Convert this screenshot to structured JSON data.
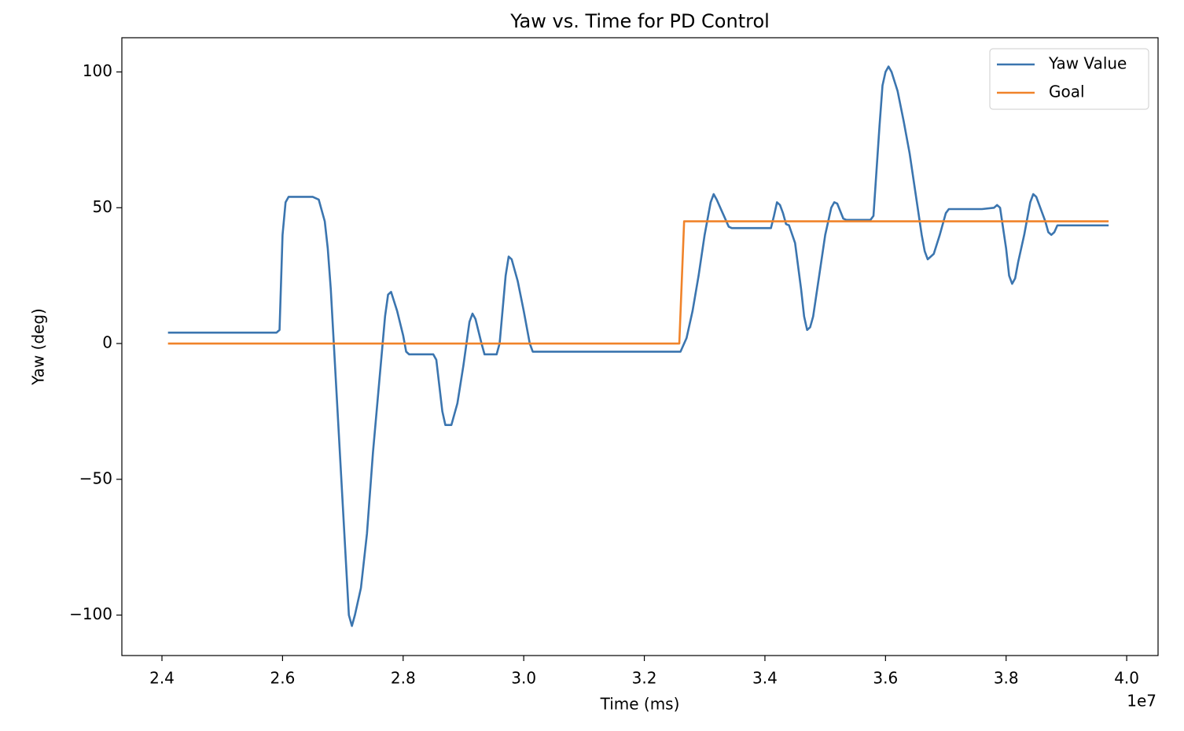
{
  "chart_data": {
    "type": "line",
    "title": "Yaw vs. Time for PD Control",
    "x_label": "Time (ms)",
    "y_label": "Yaw (deg)",
    "x_offset_label": "1e7",
    "xlim": [
      23335000,
      40520000
    ],
    "ylim": [
      -114.9,
      112.6
    ],
    "xticks": [
      {
        "value": 24000000,
        "label": "2.4"
      },
      {
        "value": 26000000,
        "label": "2.6"
      },
      {
        "value": 28000000,
        "label": "2.8"
      },
      {
        "value": 30000000,
        "label": "3.0"
      },
      {
        "value": 32000000,
        "label": "3.2"
      },
      {
        "value": 34000000,
        "label": "3.4"
      },
      {
        "value": 36000000,
        "label": "3.6"
      },
      {
        "value": 38000000,
        "label": "3.8"
      },
      {
        "value": 40000000,
        "label": "4.0"
      }
    ],
    "yticks": [
      {
        "value": -100,
        "label": "−100"
      },
      {
        "value": -50,
        "label": "−50"
      },
      0,
      50,
      100
    ],
    "legend": "upper right",
    "series": [
      {
        "name": "Yaw Value",
        "color": "#3b75af",
        "x": [
          24100000,
          25900000,
          25950000,
          26000000,
          26050000,
          26100000,
          26500000,
          26600000,
          26700000,
          26750000,
          26800000,
          26900000,
          27000000,
          27050000,
          27100000,
          27150000,
          27200000,
          27300000,
          27400000,
          27500000,
          27600000,
          27700000,
          27750000,
          27800000,
          27900000,
          28000000,
          28050000,
          28100000,
          28500000,
          28550000,
          28650000,
          28700000,
          28800000,
          28900000,
          29000000,
          29100000,
          29150000,
          29200000,
          29300000,
          29350000,
          29550000,
          29600000,
          29700000,
          29750000,
          29800000,
          29900000,
          30000000,
          30100000,
          30150000,
          32500000,
          32600000,
          32700000,
          32800000,
          32900000,
          33000000,
          33100000,
          33150000,
          33200000,
          33300000,
          33400000,
          33450000,
          34100000,
          34150000,
          34200000,
          34250000,
          34300000,
          34350000,
          34400000,
          34500000,
          34600000,
          34650000,
          34700000,
          34750000,
          34800000,
          34900000,
          35000000,
          35100000,
          35150000,
          35200000,
          35300000,
          35350000,
          35750000,
          35800000,
          35900000,
          35950000,
          36000000,
          36050000,
          36100000,
          36200000,
          36300000,
          36400000,
          36500000,
          36600000,
          36650000,
          36700000,
          36800000,
          36900000,
          37000000,
          37050000,
          37600000,
          37800000,
          37850000,
          37900000,
          38000000,
          38050000,
          38100000,
          38150000,
          38200000,
          38300000,
          38400000,
          38450000,
          38500000,
          38600000,
          38650000,
          38700000,
          38750000,
          38800000,
          38850000,
          39700000
        ],
        "values": [
          4,
          4,
          5,
          40,
          52,
          54,
          54,
          53,
          45,
          35,
          20,
          -20,
          -60,
          -80,
          -100,
          -104,
          -100,
          -90,
          -70,
          -40,
          -15,
          10,
          18,
          19,
          12,
          3,
          -3,
          -4,
          -4,
          -6,
          -25,
          -30,
          -30,
          -22,
          -8,
          8,
          11,
          9,
          0,
          -4,
          -4,
          0,
          25,
          32,
          31,
          23,
          12,
          0,
          -3,
          -3,
          -3,
          2,
          12,
          25,
          40,
          52,
          55,
          53,
          48,
          43,
          42.5,
          42.5,
          47,
          52,
          51,
          48,
          44,
          43.5,
          37,
          20,
          10,
          5,
          6,
          10,
          25,
          40,
          50,
          52,
          51.5,
          46,
          45.5,
          45.5,
          47,
          80,
          95,
          100,
          102,
          100,
          93,
          82,
          70,
          55,
          40,
          34,
          31,
          33,
          40,
          48,
          49.5,
          49.5,
          50,
          51,
          50,
          35,
          25,
          22,
          24,
          30,
          40,
          52,
          55,
          54,
          48,
          45,
          41,
          40,
          41,
          43.5,
          43.5
        ]
      },
      {
        "name": "Goal",
        "color": "#f0832a",
        "x": [
          24100000,
          32580000,
          32660000,
          39700000
        ],
        "values": [
          0,
          0,
          45,
          45
        ]
      }
    ]
  }
}
